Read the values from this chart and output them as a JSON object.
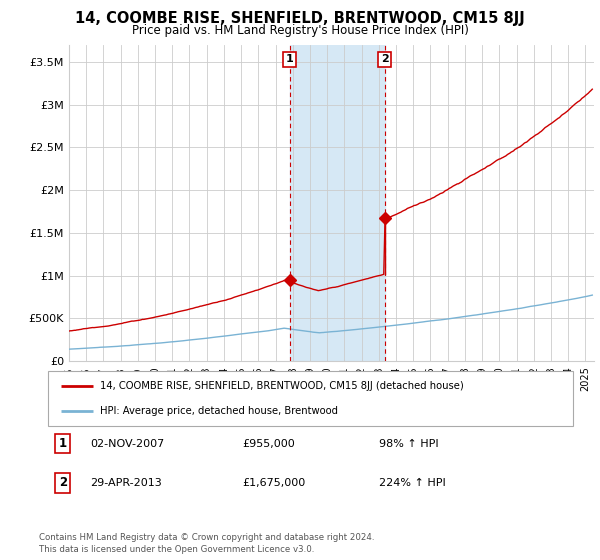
{
  "title": "14, COOMBE RISE, SHENFIELD, BRENTWOOD, CM15 8JJ",
  "subtitle": "Price paid vs. HM Land Registry's House Price Index (HPI)",
  "ylabel_ticks": [
    "£0",
    "£500K",
    "£1M",
    "£1.5M",
    "£2M",
    "£2.5M",
    "£3M",
    "£3.5M"
  ],
  "ylabel_values": [
    0,
    500000,
    1000000,
    1500000,
    2000000,
    2500000,
    3000000,
    3500000
  ],
  "ylim": [
    0,
    3700000
  ],
  "xlim_start": 1995.0,
  "xlim_end": 2025.5,
  "sale1_year": 2007.83,
  "sale1_price": 955000,
  "sale2_year": 2013.33,
  "sale2_price": 1675000,
  "sale1_label": "1",
  "sale2_label": "2",
  "sale1_date": "02-NOV-2007",
  "sale1_price_str": "£955,000",
  "sale1_hpi": "98% ↑ HPI",
  "sale2_date": "29-APR-2013",
  "sale2_price_str": "£1,675,000",
  "sale2_hpi": "224% ↑ HPI",
  "legend_line1": "14, COOMBE RISE, SHENFIELD, BRENTWOOD, CM15 8JJ (detached house)",
  "legend_line2": "HPI: Average price, detached house, Brentwood",
  "footer1": "Contains HM Land Registry data © Crown copyright and database right 2024.",
  "footer2": "This data is licensed under the Open Government Licence v3.0.",
  "hpi_color": "#7ab3d4",
  "price_color": "#cc0000",
  "shade_color": "#d6e8f5",
  "vline_color": "#cc0000",
  "background_color": "#ffffff",
  "grid_color": "#cccccc"
}
